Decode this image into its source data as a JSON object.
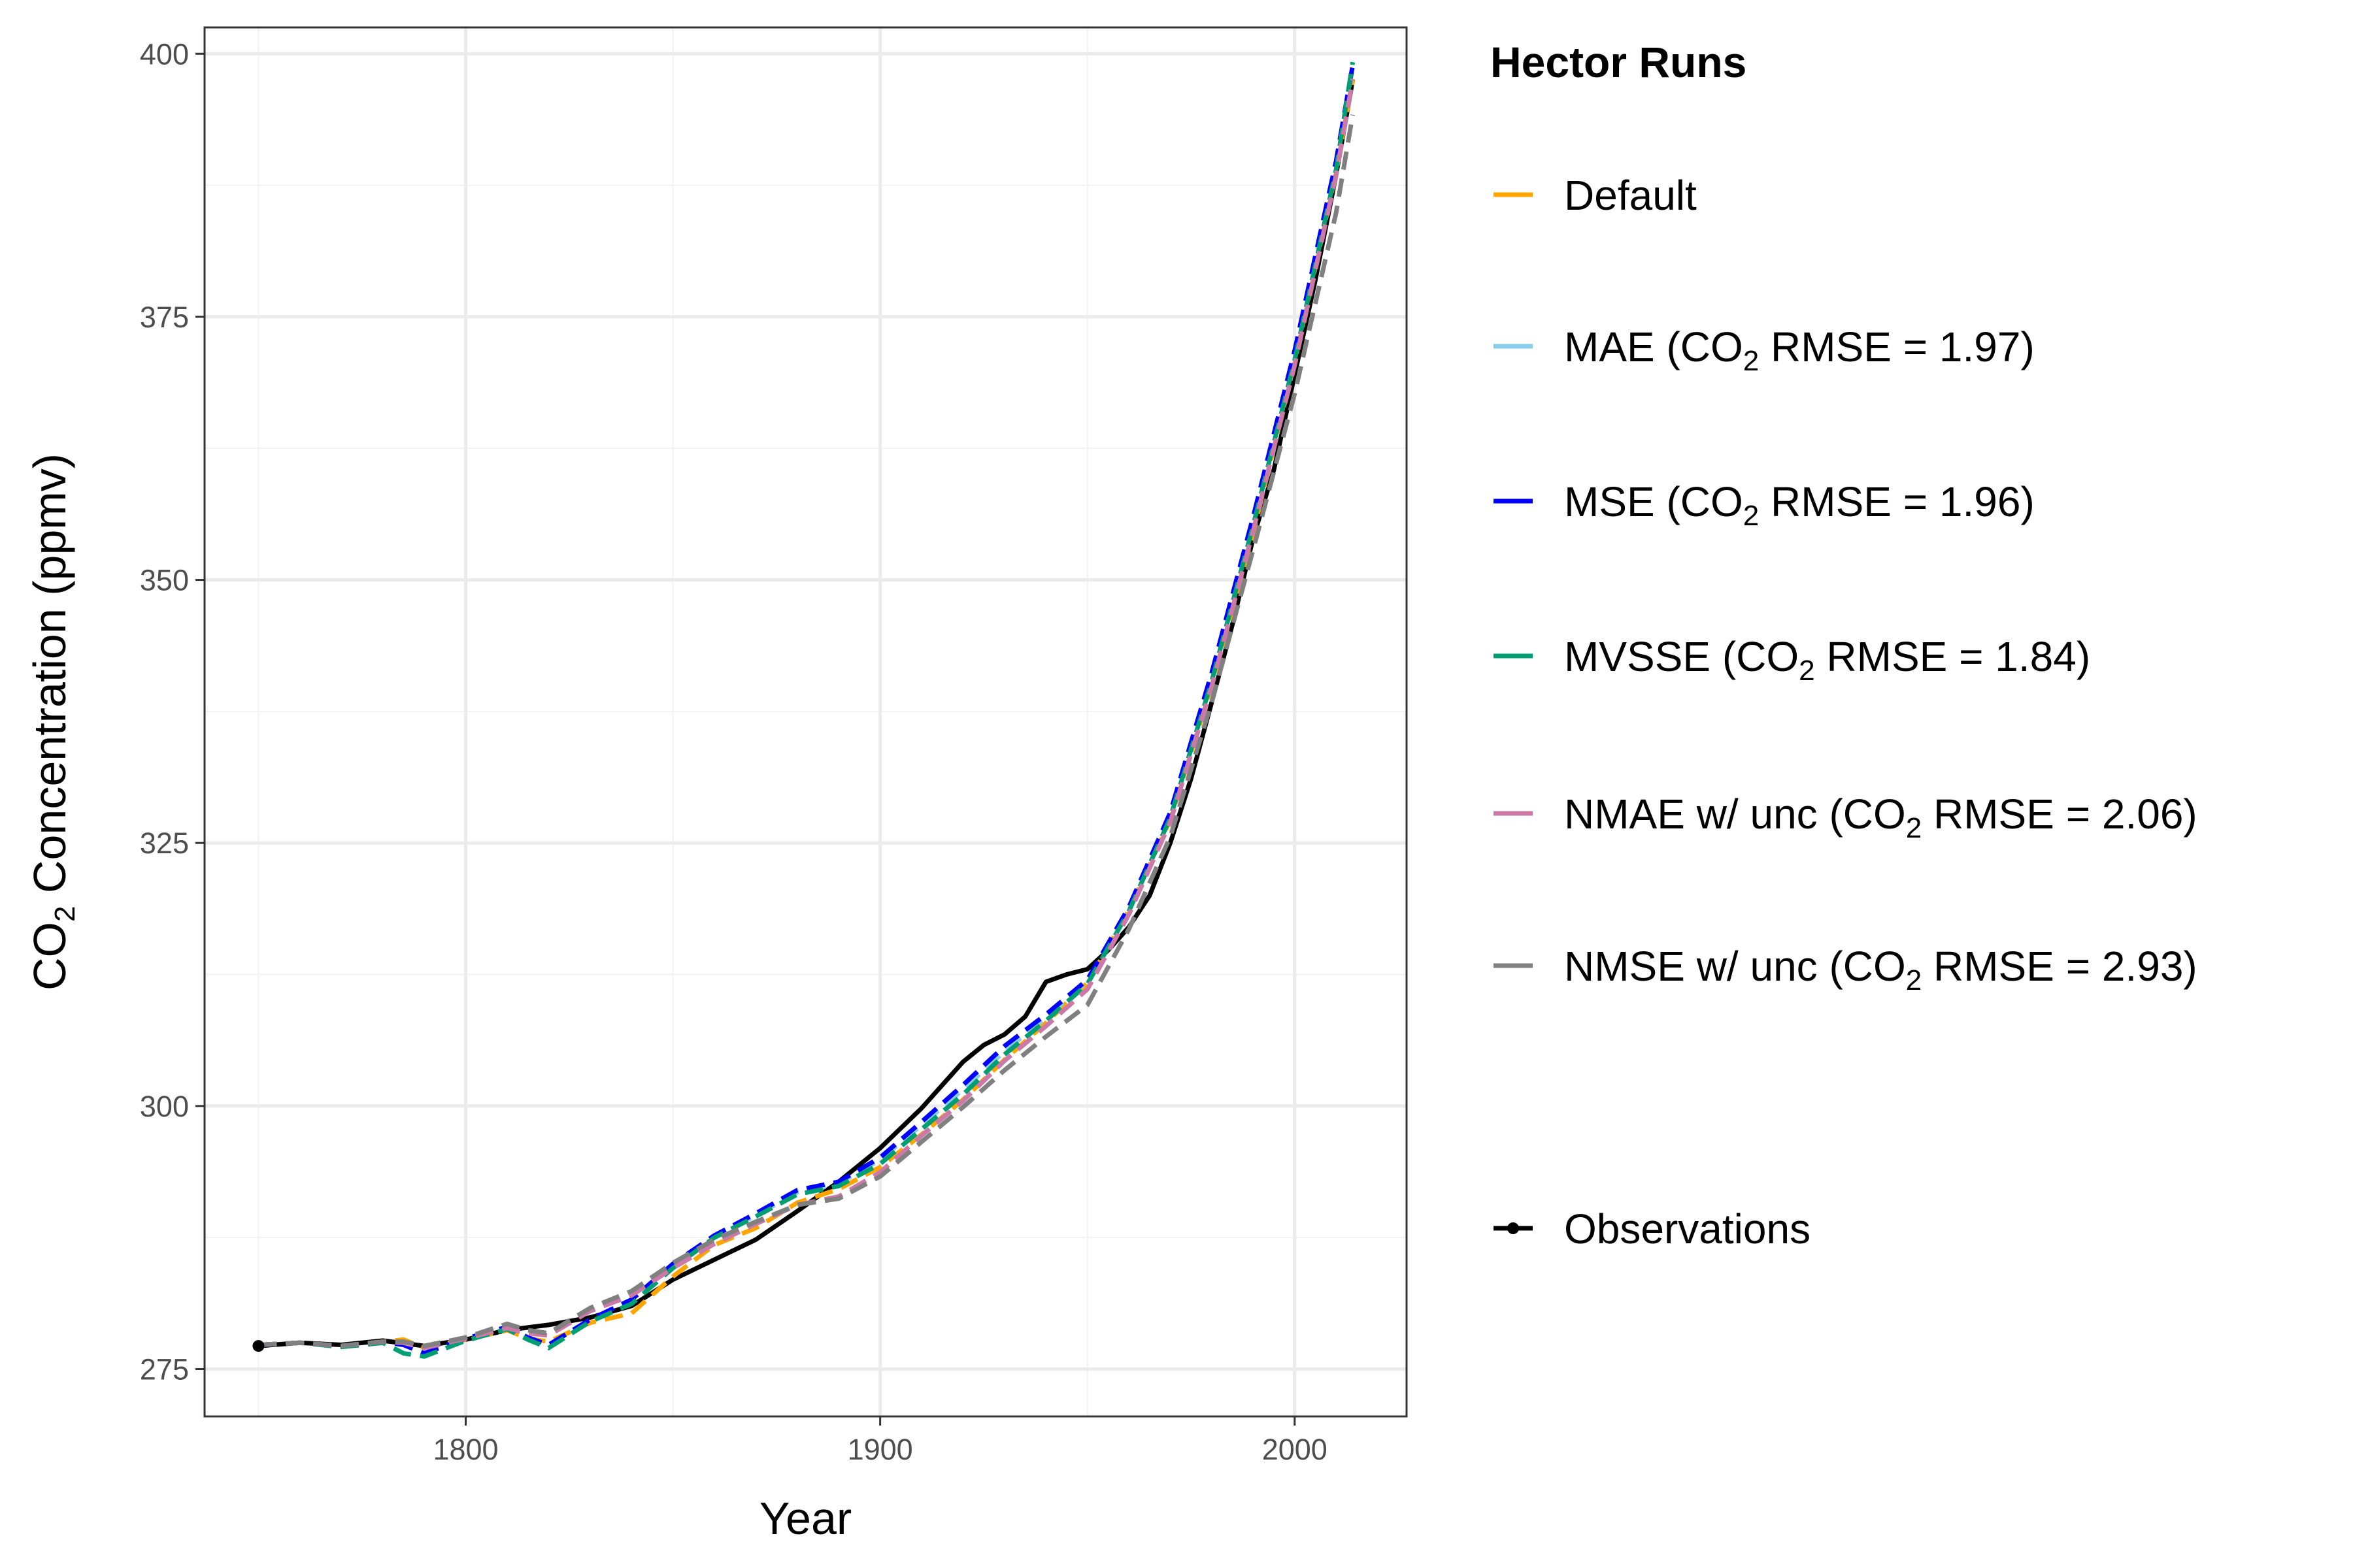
{
  "chart_data": {
    "type": "line",
    "xlabel": "Year",
    "ylabel_parts": {
      "pre": "CO",
      "sub": "2",
      "post": " Concentration (ppmv)"
    },
    "xlim": [
      1737,
      2027
    ],
    "ylim": [
      270.5,
      402.5
    ],
    "xticks": [
      1800,
      1900,
      2000
    ],
    "yticks": [
      275,
      300,
      325,
      350,
      375,
      400
    ],
    "grid": true,
    "legend": {
      "title": "Hector Runs",
      "position": "right",
      "entries": [
        {
          "pre": "Default",
          "sub": "",
          "post": "",
          "color": "#FFA500",
          "dashed": true
        },
        {
          "pre": "MAE (CO",
          "sub": "2",
          "post": " RMSE = 1.97)",
          "color": "#87CEEB",
          "dashed": true
        },
        {
          "pre": "MSE (CO",
          "sub": "2",
          "post": " RMSE = 1.96)",
          "color": "#0000FF",
          "dashed": true
        },
        {
          "pre": "MVSSE (CO",
          "sub": "2",
          "post": " RMSE = 1.84)",
          "color": "#009E73",
          "dashed": true
        },
        {
          "pre": "NMAE w/ unc (CO",
          "sub": "2",
          "post": " RMSE = 2.06)",
          "color": "#CC79A7",
          "dashed": true
        },
        {
          "pre": "NMSE w/ unc (CO",
          "sub": "2",
          "post": " RMSE = 2.93)",
          "color": "#808080",
          "dashed": true
        },
        {
          "pre": "Observations",
          "sub": "",
          "post": "",
          "color": "#000000",
          "dashed": false,
          "point": true
        }
      ]
    },
    "series": [
      {
        "name": "Observations",
        "color": "#000000",
        "dashed": false,
        "x": [
          1750,
          1760,
          1770,
          1780,
          1790,
          1800,
          1810,
          1820,
          1830,
          1840,
          1850,
          1860,
          1870,
          1880,
          1890,
          1900,
          1910,
          1920,
          1925,
          1930,
          1935,
          1940,
          1945,
          1950,
          1955,
          1960,
          1965,
          1970,
          1975,
          1980,
          1985,
          1990,
          1995,
          2000,
          2005,
          2010,
          2014
        ],
        "y": [
          277.2,
          277.5,
          277.3,
          277.7,
          277.2,
          277.8,
          278.7,
          279.2,
          279.9,
          281.0,
          283.5,
          285.4,
          287.3,
          290.0,
          292.8,
          296.0,
          299.8,
          304.2,
          305.8,
          306.8,
          308.5,
          311.8,
          312.5,
          313.0,
          314.8,
          317.0,
          320.0,
          325.0,
          331.1,
          338.4,
          345.8,
          354.0,
          360.5,
          369.5,
          378.5,
          388.5,
          397.5
        ]
      },
      {
        "name": "Default",
        "color": "#FFA500",
        "dashed": true,
        "x": [
          1750,
          1760,
          1770,
          1780,
          1785,
          1790,
          1800,
          1810,
          1815,
          1820,
          1830,
          1840,
          1850,
          1860,
          1870,
          1880,
          1890,
          1900,
          1910,
          1920,
          1930,
          1940,
          1950,
          1960,
          1970,
          1980,
          1990,
          2000,
          2010,
          2014
        ],
        "y": [
          277.3,
          277.5,
          277.2,
          277.6,
          277.8,
          277.0,
          277.8,
          278.7,
          277.9,
          277.6,
          279.4,
          280.3,
          283.8,
          286.8,
          288.4,
          290.8,
          292.1,
          294.2,
          297.3,
          300.6,
          304.4,
          307.9,
          311.7,
          318.6,
          327.2,
          340.0,
          354.5,
          370.7,
          388.8,
          397.5
        ]
      },
      {
        "name": "MAE (CO2 RMSE = 1.97)",
        "color": "#87CEEB",
        "dashed": true,
        "x": [
          1750,
          1760,
          1770,
          1780,
          1785,
          1790,
          1800,
          1810,
          1815,
          1820,
          1830,
          1840,
          1850,
          1860,
          1870,
          1880,
          1890,
          1900,
          1910,
          1920,
          1930,
          1940,
          1950,
          1960,
          1970,
          1980,
          1990,
          2000,
          2010,
          2014
        ],
        "y": [
          277.3,
          277.5,
          277.2,
          277.6,
          277.3,
          276.5,
          277.9,
          279.0,
          278.0,
          277.3,
          279.7,
          281.6,
          284.9,
          287.6,
          289.6,
          291.8,
          292.6,
          294.9,
          298.2,
          301.6,
          305.2,
          308.4,
          311.9,
          318.8,
          327.8,
          341.0,
          355.8,
          371.5,
          389.6,
          398.8
        ]
      },
      {
        "name": "MSE (CO2 RMSE = 1.96)",
        "color": "#0000FF",
        "dashed": true,
        "x": [
          1750,
          1760,
          1770,
          1780,
          1785,
          1790,
          1800,
          1810,
          1815,
          1820,
          1830,
          1840,
          1850,
          1860,
          1870,
          1880,
          1890,
          1900,
          1910,
          1920,
          1930,
          1940,
          1950,
          1960,
          1970,
          1980,
          1990,
          2000,
          2010,
          2014
        ],
        "y": [
          277.3,
          277.5,
          277.2,
          277.6,
          277.3,
          276.5,
          277.9,
          279.0,
          278.0,
          277.3,
          279.7,
          281.6,
          285.0,
          287.7,
          289.8,
          292.0,
          292.8,
          295.1,
          298.5,
          302.0,
          305.7,
          308.7,
          312.0,
          318.9,
          327.9,
          341.2,
          356.0,
          371.8,
          389.8,
          398.9
        ]
      },
      {
        "name": "MVSSE (CO2 RMSE = 1.84)",
        "color": "#009E73",
        "dashed": true,
        "x": [
          1750,
          1760,
          1770,
          1780,
          1785,
          1790,
          1800,
          1810,
          1815,
          1820,
          1830,
          1840,
          1850,
          1860,
          1870,
          1880,
          1890,
          1900,
          1910,
          1920,
          1930,
          1940,
          1950,
          1960,
          1970,
          1980,
          1990,
          2000,
          2010,
          2014
        ],
        "y": [
          277.3,
          277.5,
          277.1,
          277.5,
          276.5,
          276.2,
          277.7,
          278.8,
          277.8,
          277.0,
          279.5,
          281.2,
          284.6,
          287.5,
          289.5,
          291.6,
          292.4,
          294.5,
          297.8,
          301.1,
          304.9,
          308.1,
          311.6,
          318.5,
          327.4,
          340.4,
          355.2,
          370.9,
          389.0,
          399.2
        ]
      },
      {
        "name": "NMAE w/ unc (CO2 RMSE = 2.06)",
        "color": "#CC79A7",
        "dashed": true,
        "x": [
          1750,
          1760,
          1770,
          1780,
          1785,
          1790,
          1800,
          1810,
          1815,
          1820,
          1830,
          1840,
          1850,
          1860,
          1870,
          1880,
          1890,
          1900,
          1910,
          1920,
          1930,
          1940,
          1950,
          1960,
          1970,
          1980,
          1990,
          2000,
          2010,
          2014
        ],
        "y": [
          277.3,
          277.5,
          277.2,
          277.6,
          277.5,
          277.0,
          277.9,
          278.9,
          278.4,
          278.2,
          280.5,
          282.0,
          284.6,
          286.9,
          288.8,
          290.6,
          291.4,
          293.7,
          297.2,
          300.5,
          304.3,
          307.6,
          311.1,
          318.2,
          327.0,
          339.9,
          354.7,
          370.4,
          388.5,
          397.6
        ]
      },
      {
        "name": "NMSE w/ unc (CO2 RMSE = 2.93)",
        "color": "#808080",
        "dashed": true,
        "x": [
          1750,
          1760,
          1770,
          1780,
          1785,
          1790,
          1800,
          1810,
          1815,
          1820,
          1830,
          1840,
          1850,
          1860,
          1870,
          1880,
          1890,
          1900,
          1910,
          1920,
          1930,
          1940,
          1950,
          1960,
          1970,
          1980,
          1990,
          2000,
          2010,
          2014
        ],
        "y": [
          277.3,
          277.5,
          277.2,
          277.6,
          277.6,
          277.2,
          278.0,
          279.3,
          278.7,
          278.4,
          280.8,
          282.4,
          285.1,
          287.3,
          289.0,
          290.6,
          291.2,
          293.3,
          296.6,
          299.9,
          303.4,
          306.6,
          309.6,
          316.8,
          325.6,
          338.4,
          352.9,
          367.7,
          384.9,
          394.2
        ]
      }
    ]
  }
}
